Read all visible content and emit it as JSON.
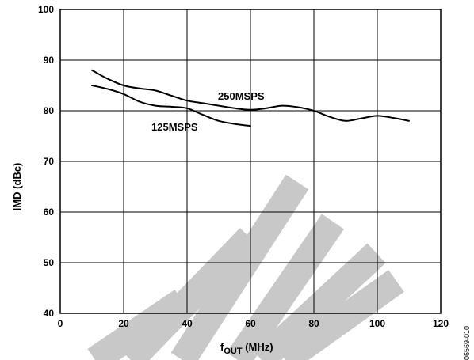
{
  "chart_data": {
    "type": "line",
    "title": "",
    "xlabel": {
      "main": "f",
      "sub": "OUT",
      "rest": " (MHz)"
    },
    "ylabel": "IMD (dBc)",
    "xlim": [
      0,
      120
    ],
    "ylim": [
      40,
      100
    ],
    "x_ticks": [
      0,
      20,
      40,
      60,
      80,
      100,
      120
    ],
    "y_ticks": [
      40,
      50,
      60,
      70,
      80,
      90,
      100
    ],
    "grid": true,
    "series": [
      {
        "name": "250MSPS",
        "x": [
          10,
          15,
          20,
          25,
          30,
          35,
          40,
          45,
          50,
          55,
          60,
          65,
          70,
          75,
          80,
          85,
          90,
          95,
          100,
          105,
          110
        ],
        "y": [
          88,
          86.3,
          85,
          84.4,
          84,
          83,
          82,
          81.5,
          81,
          80.5,
          80.2,
          80.5,
          81,
          80.7,
          80,
          78.8,
          78,
          78.5,
          79,
          78.6,
          78
        ]
      },
      {
        "name": "125MSPS",
        "x": [
          10,
          15,
          20,
          25,
          30,
          35,
          40,
          45,
          50,
          55,
          60
        ],
        "y": [
          85,
          84.3,
          83.3,
          81.8,
          81,
          80.8,
          80.5,
          79.2,
          78,
          77.4,
          77
        ]
      }
    ],
    "figure_id": "06569-010",
    "watermark_color": "#c8c8c8"
  }
}
